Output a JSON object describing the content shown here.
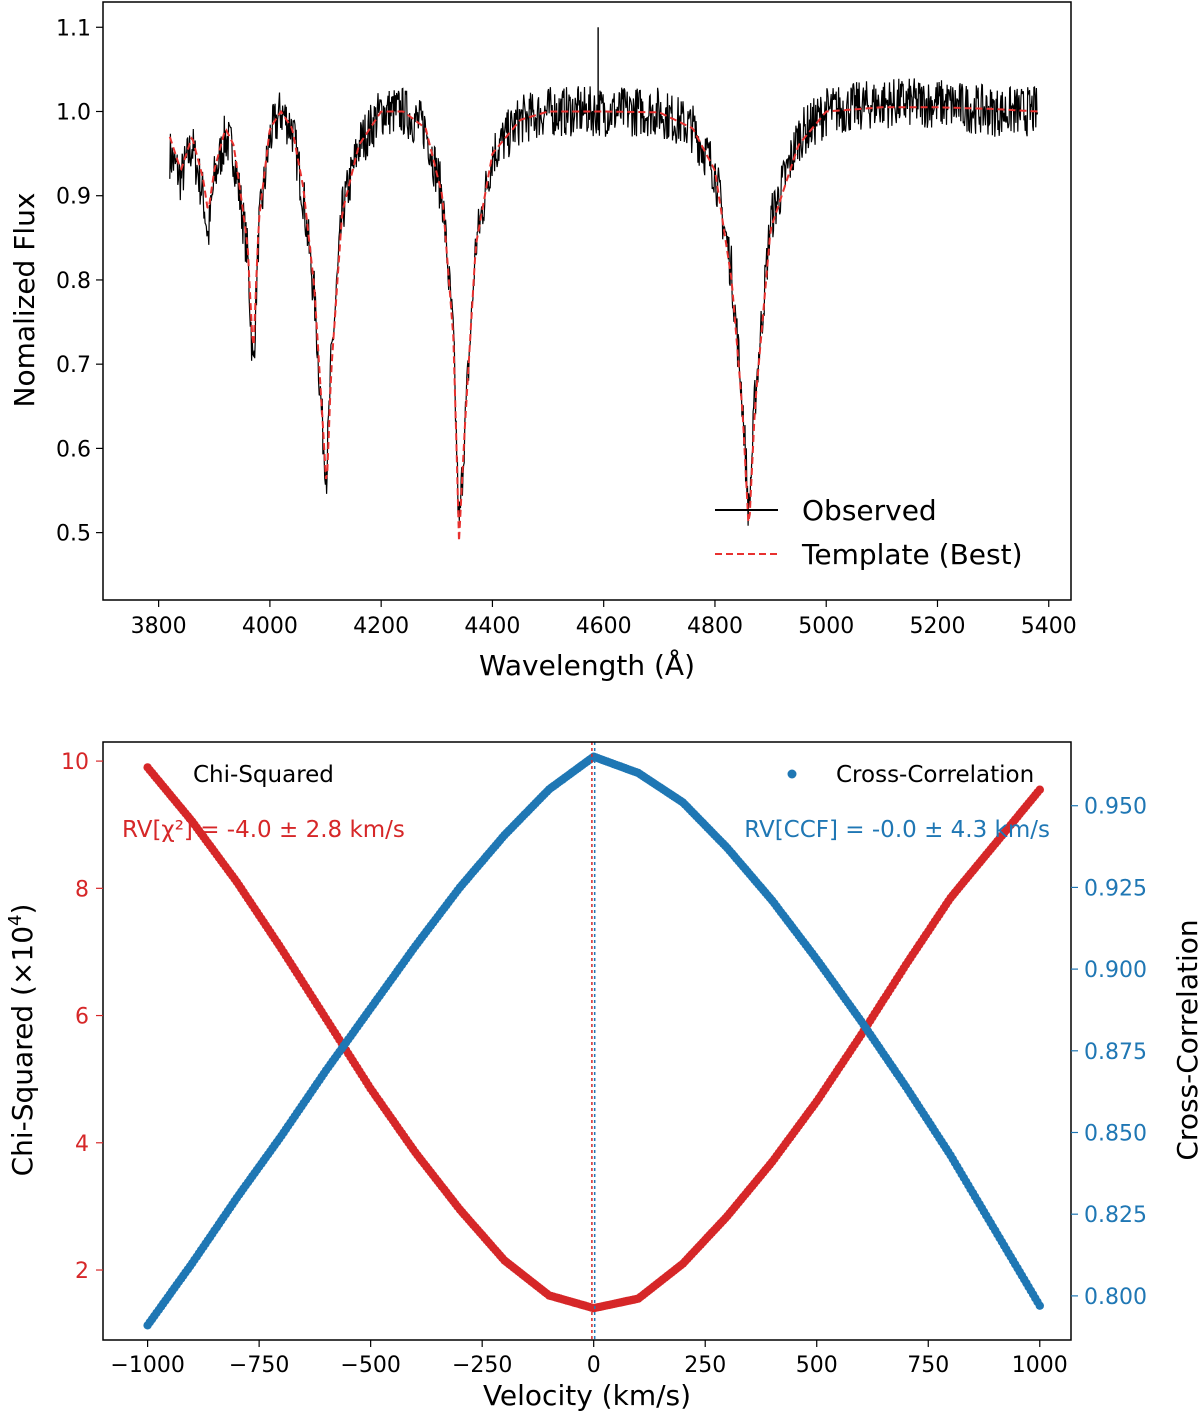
{
  "colors": {
    "observed": "#000000",
    "template": "#e8312f",
    "chi": "#d62728",
    "ccf": "#1f77b4",
    "axis": "#000000"
  },
  "chart_data": [
    {
      "type": "line",
      "title": "",
      "xlabel": "Wavelength (Å)",
      "ylabel": "Nomalized Flux",
      "xlim": [
        3700,
        5440
      ],
      "ylim": [
        0.42,
        1.13
      ],
      "xticks": [
        3800,
        4000,
        4200,
        4400,
        4600,
        4800,
        5000,
        5200,
        5400
      ],
      "xtick_labels": [
        "3800",
        "4000",
        "4200",
        "4400",
        "4600",
        "4800",
        "5000",
        "5200",
        "5400"
      ],
      "yticks": [
        0.5,
        0.6,
        0.7,
        0.8,
        0.9,
        1.0,
        1.1
      ],
      "ytick_labels": [
        "0.5",
        "0.6",
        "0.7",
        "0.8",
        "0.9",
        "1.0",
        "1.1"
      ],
      "legend": {
        "placement": "lower-right",
        "entries": [
          {
            "label": "Observed",
            "style": "solid"
          },
          {
            "label": "Template (Best)",
            "style": "dashed"
          }
        ]
      },
      "x": [
        3820,
        3840,
        3860,
        3880,
        3889,
        3900,
        3920,
        3935,
        3950,
        3960,
        3970,
        3980,
        4000,
        4020,
        4040,
        4060,
        4080,
        4095,
        4102,
        4110,
        4130,
        4160,
        4200,
        4240,
        4280,
        4310,
        4330,
        4340,
        4350,
        4370,
        4400,
        4450,
        4500,
        4600,
        4700,
        4760,
        4800,
        4830,
        4850,
        4861,
        4872,
        4900,
        4950,
        5000,
        5100,
        5200,
        5300,
        5380
      ],
      "series": [
        {
          "name": "Observed",
          "values": [
            0.95,
            0.92,
            0.96,
            0.9,
            0.85,
            0.92,
            0.97,
            0.95,
            0.88,
            0.83,
            0.69,
            0.86,
            0.97,
            1.0,
            0.98,
            0.9,
            0.78,
            0.62,
            0.57,
            0.7,
            0.88,
            0.96,
            1.0,
            1.0,
            0.98,
            0.9,
            0.73,
            0.5,
            0.62,
            0.84,
            0.95,
            0.99,
            1.0,
            1.0,
            1.0,
            0.98,
            0.93,
            0.81,
            0.65,
            0.52,
            0.66,
            0.87,
            0.97,
            1.0,
            1.01,
            1.01,
            1.0,
            1.0
          ],
          "noise_amplitude": 0.03
        },
        {
          "name": "Template (Best)",
          "values": [
            0.97,
            0.93,
            0.97,
            0.92,
            0.88,
            0.93,
            0.98,
            0.96,
            0.89,
            0.84,
            0.71,
            0.87,
            0.98,
            1.0,
            0.98,
            0.91,
            0.79,
            0.63,
            0.55,
            0.69,
            0.88,
            0.96,
            1.0,
            1.0,
            0.98,
            0.9,
            0.73,
            0.49,
            0.62,
            0.84,
            0.95,
            0.99,
            1.0,
            1.0,
            0.999,
            0.98,
            0.93,
            0.8,
            0.64,
            0.5,
            0.65,
            0.86,
            0.96,
            1.0,
            1.005,
            1.005,
            1.003,
            1.0
          ]
        }
      ],
      "annotations": [
        {
          "label": "spike",
          "x": 4590,
          "y": 1.1
        }
      ]
    },
    {
      "type": "scatter",
      "title": "",
      "xlabel": "Velocity (km/s)",
      "ylabel_left": "Chi-Squared (×10",
      "ylabel_left_sup": "4",
      "ylabel_left_close": ")",
      "ylabel_right": "Cross-Correlation",
      "xlim": [
        -1100,
        1070
      ],
      "ylim_left": [
        0.9,
        10.3
      ],
      "ylim_right": [
        0.7865,
        0.9695
      ],
      "xticks": [
        -1000,
        -750,
        -500,
        -250,
        0,
        250,
        500,
        750,
        1000
      ],
      "xtick_labels": [
        "−1000",
        "−750",
        "−500",
        "−250",
        "0",
        "250",
        "500",
        "750",
        "1000"
      ],
      "yticks_left": [
        2,
        4,
        6,
        8,
        10
      ],
      "ytick_labels_left": [
        "2",
        "4",
        "6",
        "8",
        "10"
      ],
      "yticks_right": [
        0.8,
        0.825,
        0.85,
        0.875,
        0.9,
        0.925,
        0.95
      ],
      "ytick_labels_right": [
        "0.800",
        "0.825",
        "0.850",
        "0.875",
        "0.900",
        "0.925",
        "0.950"
      ],
      "series": [
        {
          "name": "Chi-Squared",
          "axis": "left",
          "x": [
            -1000,
            -900,
            -800,
            -700,
            -600,
            -500,
            -400,
            -300,
            -200,
            -100,
            0,
            100,
            200,
            300,
            400,
            500,
            600,
            700,
            800,
            900,
            1000
          ],
          "values": [
            9.9,
            9.05,
            8.1,
            7.05,
            5.95,
            4.85,
            3.85,
            2.95,
            2.15,
            1.6,
            1.4,
            1.55,
            2.1,
            2.85,
            3.7,
            4.65,
            5.7,
            6.8,
            7.85,
            8.7,
            9.55
          ]
        },
        {
          "name": "Cross-Correlation",
          "axis": "right",
          "x": [
            -1000,
            -900,
            -800,
            -700,
            -600,
            -500,
            -400,
            -300,
            -200,
            -100,
            0,
            100,
            200,
            300,
            400,
            500,
            600,
            700,
            800,
            900,
            1000
          ],
          "values": [
            0.791,
            0.81,
            0.83,
            0.849,
            0.869,
            0.888,
            0.907,
            0.925,
            0.941,
            0.955,
            0.965,
            0.96,
            0.951,
            0.937,
            0.921,
            0.903,
            0.884,
            0.864,
            0.843,
            0.82,
            0.797
          ]
        }
      ],
      "vlines": [
        {
          "name": "RV chi-squared",
          "x": -4.0
        },
        {
          "name": "RV CCF",
          "x": -0.0
        }
      ],
      "legend_left": "Chi-Squared",
      "legend_right": "Cross-Correlation",
      "rv_chi_text": "RV[χ²] = -4.0 ± 2.8 km/s",
      "rv_ccf_text": "RV[CCF] = -0.0 ± 4.3 km/s"
    }
  ]
}
